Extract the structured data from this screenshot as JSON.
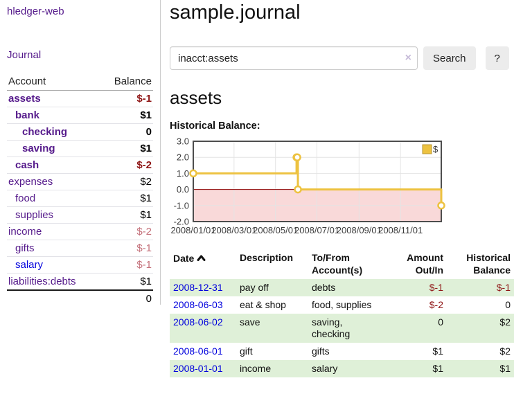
{
  "app": {
    "title": "hledger-web",
    "nav_journal": "Journal"
  },
  "sidebar": {
    "col_account": "Account",
    "col_balance": "Balance",
    "accounts": [
      {
        "name": "assets",
        "depth": 1,
        "bold": true,
        "balance": "$-1",
        "balance_style": "neg"
      },
      {
        "name": "bank",
        "depth": 2,
        "bold": true,
        "balance": "$1",
        "balance_style": "pos"
      },
      {
        "name": "checking",
        "depth": 3,
        "bold": true,
        "balance": "0",
        "balance_style": "pos"
      },
      {
        "name": "saving",
        "depth": 3,
        "bold": true,
        "balance": "$1",
        "balance_style": "pos"
      },
      {
        "name": "cash",
        "depth": 2,
        "bold": true,
        "balance": "$-2",
        "balance_style": "neg"
      },
      {
        "name": "expenses",
        "depth": 1,
        "bold": false,
        "balance": "$2",
        "balance_style": "pos"
      },
      {
        "name": "food",
        "depth": 2,
        "bold": false,
        "balance": "$1",
        "balance_style": "pos"
      },
      {
        "name": "supplies",
        "depth": 2,
        "bold": false,
        "balance": "$1",
        "balance_style": "pos"
      },
      {
        "name": "income",
        "depth": 1,
        "bold": false,
        "balance": "$-2",
        "balance_style": "neg-light"
      },
      {
        "name": "gifts",
        "depth": 2,
        "bold": false,
        "balance": "$-1",
        "balance_style": "neg-light"
      },
      {
        "name": "salary",
        "depth": 2,
        "bold": false,
        "link_color": "blue",
        "balance": "$-1",
        "balance_style": "neg-light"
      },
      {
        "name": "liabilities:debts",
        "depth": 1,
        "bold": false,
        "balance": "$1",
        "balance_style": "pos"
      }
    ],
    "total": "0"
  },
  "header": {
    "title": "sample.journal"
  },
  "search": {
    "value": "inacct:assets",
    "clear_icon": "×",
    "button": "Search",
    "help_button": "?"
  },
  "account_page": {
    "title": "assets",
    "chart_label": "Historical Balance:"
  },
  "chart_data": {
    "type": "line",
    "title": "Historical Balance:",
    "step": true,
    "legend": "$",
    "legend_position": "top-right",
    "grid": true,
    "xdomain": [
      "2008-01-01",
      "2008-12-31"
    ],
    "ylim": [
      -2,
      3
    ],
    "yticks": [
      3.0,
      2.0,
      1.0,
      0.0,
      -1.0,
      -2.0
    ],
    "xticks": [
      "2008/01/01",
      "2008/03/01",
      "2008/05/01",
      "2008/07/01",
      "2008/09/01",
      "2008/11/01"
    ],
    "series": [
      {
        "name": "$",
        "color": "#edc240",
        "points": [
          {
            "date": "2008-01-01",
            "value": 1
          },
          {
            "date": "2008-06-01",
            "value": 2
          },
          {
            "date": "2008-06-02",
            "value": 2
          },
          {
            "date": "2008-06-03",
            "value": 0
          },
          {
            "date": "2008-12-31",
            "value": -1
          }
        ]
      }
    ],
    "colors": {
      "negative_region": "#f9d9d9",
      "zero_line": "#8b0000",
      "grid": "#e4e4e4",
      "border": "#4d4d4d",
      "tick_text": "#3c3c3c"
    }
  },
  "register": {
    "sort": "ascending",
    "columns": {
      "date": "Date",
      "description": "Description",
      "accounts": "To/From Account(s)",
      "amount": "Amount Out/In",
      "balance": "Historical Balance"
    },
    "rows": [
      {
        "date": "2008-12-31",
        "description": "pay off",
        "accounts": "debts",
        "amount": "$-1",
        "amount_neg": true,
        "balance": "$-1",
        "balance_neg": true
      },
      {
        "date": "2008-06-03",
        "description": "eat & shop",
        "accounts": "food, supplies",
        "amount": "$-2",
        "amount_neg": true,
        "balance": "0",
        "balance_neg": false
      },
      {
        "date": "2008-06-02",
        "description": "save",
        "accounts": "saving, checking",
        "amount": "0",
        "amount_neg": false,
        "balance": "$2",
        "balance_neg": false
      },
      {
        "date": "2008-06-01",
        "description": "gift",
        "accounts": "gifts",
        "amount": "$1",
        "amount_neg": false,
        "balance": "$2",
        "balance_neg": false
      },
      {
        "date": "2008-01-01",
        "description": "income",
        "accounts": "salary",
        "amount": "$1",
        "amount_neg": false,
        "balance": "$1",
        "balance_neg": false
      }
    ]
  },
  "icons": {
    "clear_search": "x-circle",
    "sort_asc": "chevron-up",
    "help": "question-mark"
  },
  "colors": {
    "link_purple": "#551a8b",
    "link_blue": "#0000dd",
    "negative_strong": "#8e1414",
    "negative_light": "#c4707a",
    "row_stripe_green": "#dff0d8",
    "series_gold": "#edc240"
  }
}
